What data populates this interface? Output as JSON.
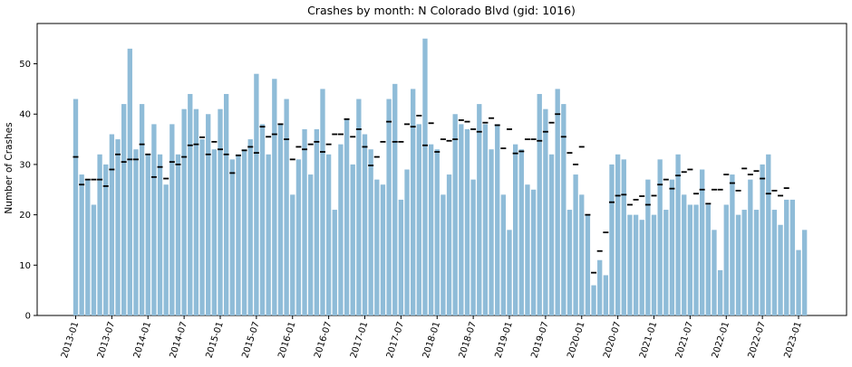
{
  "chart_data": {
    "type": "bar",
    "title": "Crashes by month: N Colorado Blvd (gid: 1016)",
    "xlabel": "",
    "ylabel": "Number of Crashes",
    "ylim": [
      0,
      58
    ],
    "yticks": [
      0,
      10,
      20,
      30,
      40,
      50
    ],
    "grid": false,
    "legend": "none",
    "bar_color": "#8fbcd8",
    "marker_color": "#000000",
    "x_tick_labels": [
      "2013-01",
      "2013-07",
      "2014-01",
      "2014-07",
      "2015-01",
      "2015-07",
      "2016-01",
      "2016-07",
      "2017-01",
      "2017-07",
      "2018-01",
      "2018-07",
      "2019-01",
      "2019-07",
      "2020-01",
      "2020-07",
      "2021-01",
      "2021-07",
      "2022-01",
      "2022-07",
      "2023-01"
    ],
    "x_tick_label_months": [
      "2013-01",
      "2013-07",
      "2014-01",
      "2014-07",
      "2015-01",
      "2015-07",
      "2016-01",
      "2016-07",
      "2017-01",
      "2017-07",
      "2018-01",
      "2018-07",
      "2019-01",
      "2019-07",
      "2020-01",
      "2020-07",
      "2021-01",
      "2021-07",
      "2022-01",
      "2022-07",
      "2023-01"
    ],
    "first_month": "2013-01",
    "series": [
      {
        "values": [
          43,
          28,
          27,
          22,
          32,
          30,
          36,
          35,
          42,
          53,
          33,
          42,
          32,
          38,
          32,
          26,
          38,
          32,
          41,
          44,
          41,
          35,
          40,
          33,
          41,
          44,
          31,
          32,
          33,
          35,
          48,
          38,
          32,
          47,
          38,
          43,
          24,
          31,
          37,
          28,
          37,
          45,
          32,
          21,
          34,
          39,
          30,
          43,
          36,
          33,
          27,
          26,
          43,
          46,
          23,
          29,
          45,
          38,
          55,
          34,
          33,
          24,
          28,
          40,
          38,
          37,
          27,
          42,
          38,
          33,
          38,
          24,
          17,
          34,
          33,
          26,
          25,
          44,
          41,
          32,
          45,
          42,
          21,
          28,
          24,
          20,
          6,
          11,
          8,
          30,
          32,
          31,
          20,
          20,
          19,
          27,
          20,
          31,
          21,
          27,
          32,
          24,
          22,
          22,
          29,
          22,
          17,
          9,
          22,
          28,
          20,
          21,
          27,
          21,
          30,
          32,
          21,
          18,
          23,
          23,
          13,
          17
        ]
      },
      {
        "values": [
          31.5,
          26,
          27,
          27,
          27,
          25.7,
          29,
          32,
          30.5,
          31,
          31,
          34,
          32,
          27.5,
          29.5,
          27.2,
          30.5,
          30,
          31.5,
          33.8,
          34,
          35.4,
          32,
          34.5,
          33,
          32,
          28.3,
          31.8,
          32.8,
          33.5,
          32.3,
          37.5,
          35.5,
          36,
          38,
          35,
          31,
          33.5,
          33,
          34,
          34.5,
          32.5,
          34,
          36,
          36,
          39,
          35.5,
          37,
          33.5,
          29.8,
          31.5,
          34.5,
          38.5,
          34.5,
          34.5,
          38,
          37.5,
          39.7,
          33.8,
          38.2,
          32.5,
          35,
          34.7,
          35,
          38.8,
          38.5,
          37,
          36.5,
          38.3,
          39.2,
          37.8,
          33.2,
          37,
          32.2,
          32.6,
          35,
          35,
          34.7,
          36.5,
          38.3,
          40,
          35.5,
          32.3,
          30,
          33.5,
          20,
          8.5,
          12.8,
          16.5,
          22.5,
          23.8,
          24,
          22,
          23,
          23.7,
          22,
          23.8,
          26,
          27,
          25.2,
          27.8,
          28.5,
          29,
          24.2,
          25,
          22.2,
          25,
          25,
          28,
          26.3,
          24.8,
          29.2,
          28,
          28.7,
          27.2,
          24.2,
          24.8,
          23.8,
          25.3,
          null
        ]
      }
    ]
  }
}
